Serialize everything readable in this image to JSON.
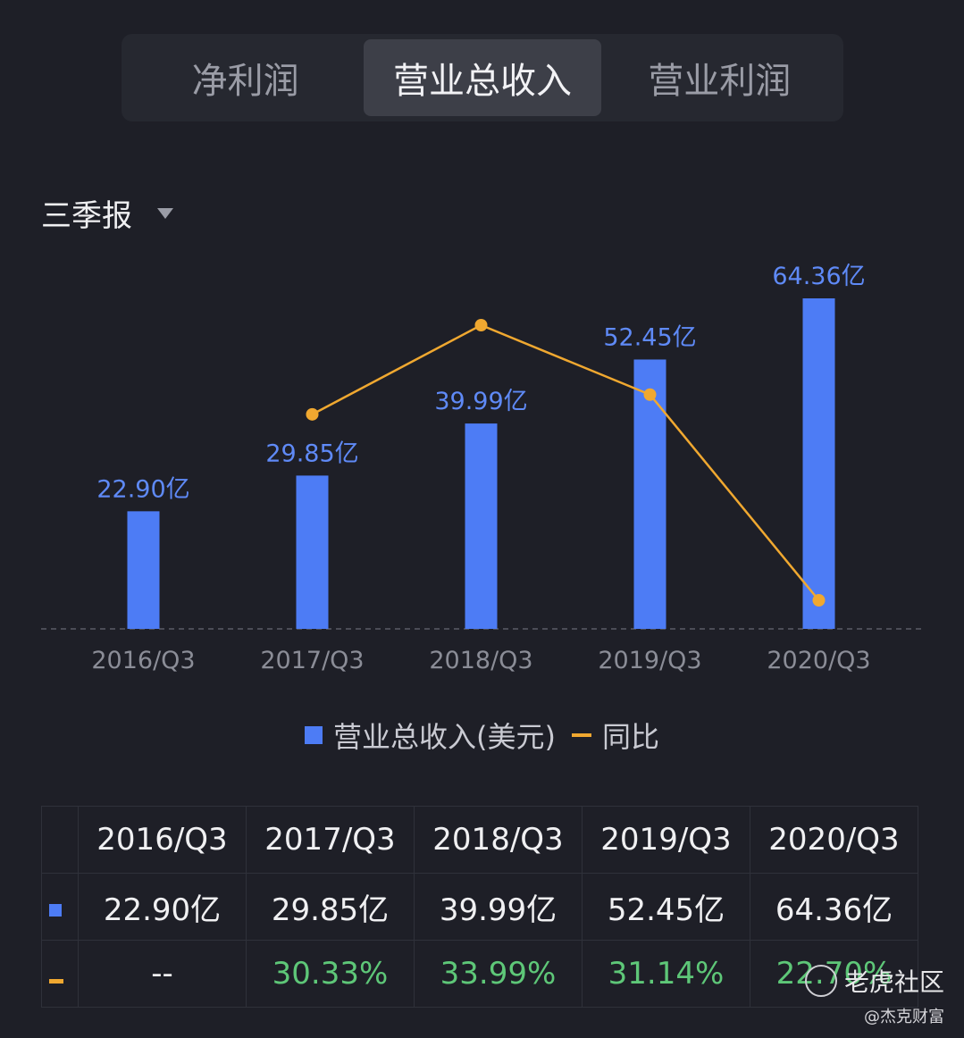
{
  "tabs": [
    {
      "label": "净利润",
      "active": false
    },
    {
      "label": "营业总收入",
      "active": true
    },
    {
      "label": "营业利润",
      "active": false
    }
  ],
  "period": {
    "label": "三季报",
    "icon": "caret-down-icon"
  },
  "chart_data": {
    "type": "bar",
    "categories": [
      "2016/Q3",
      "2017/Q3",
      "2018/Q3",
      "2019/Q3",
      "2020/Q3"
    ],
    "series": [
      {
        "name": "营业总收入(美元)",
        "type": "bar",
        "color": "#4d7cf5",
        "values": [
          22.9,
          29.85,
          39.99,
          52.45,
          64.36
        ],
        "labels": [
          "22.90亿",
          "29.85亿",
          "39.99亿",
          "52.45亿",
          "64.36亿"
        ]
      },
      {
        "name": "同比",
        "type": "line",
        "color": "#f0a830",
        "values": [
          null,
          30.33,
          33.99,
          31.14,
          22.7
        ]
      }
    ],
    "legend": [
      "营业总收入(美元)",
      "同比"
    ],
    "legend_position": "bottom"
  },
  "table": {
    "headers": [
      "2016/Q3",
      "2017/Q3",
      "2018/Q3",
      "2019/Q3",
      "2020/Q3"
    ],
    "revenue": [
      "22.90亿",
      "29.85亿",
      "39.99亿",
      "52.45亿",
      "64.36亿"
    ],
    "yoy": [
      "--",
      "30.33%",
      "33.99%",
      "31.14%",
      "22.70%"
    ]
  },
  "watermark": {
    "brand": "老虎社区",
    "handle": "@杰克财富"
  }
}
